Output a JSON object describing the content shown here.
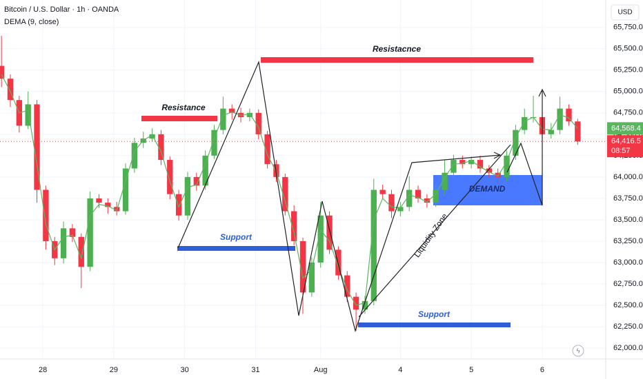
{
  "chart_data": {
    "type": "candlestick",
    "title": "Bitcoin / U.S. Dollar · 1h · OANDA",
    "currency": "USD",
    "up_color": "#4caf50",
    "down_color": "#f23645",
    "x": [
      -14,
      -11,
      -8,
      -5,
      -2,
      1,
      4,
      7,
      10,
      13,
      16,
      19,
      22,
      25,
      28,
      31,
      34,
      37,
      40,
      43,
      46,
      49,
      52,
      55,
      58,
      61,
      64,
      67,
      70,
      73,
      76,
      79,
      82,
      85,
      88,
      91,
      94,
      97,
      100,
      103,
      106,
      109,
      112,
      115,
      118,
      121,
      124,
      127,
      130,
      133,
      136,
      139,
      142,
      145,
      148,
      151,
      154,
      157,
      160,
      163,
      166,
      169,
      172,
      175,
      178,
      181
    ],
    "open": [
      65300,
      65150,
      64900,
      64600,
      64850,
      63850,
      63250,
      63050,
      63400,
      63300,
      62950,
      63750,
      63700,
      63650,
      63600,
      64100,
      64400,
      64450,
      64500,
      64200,
      63800,
      63550,
      64000,
      63900,
      64250,
      64550,
      64800,
      64750,
      64700,
      64750,
      64500,
      64150,
      64000,
      63600,
      63250,
      62650,
      63000,
      63550,
      63150,
      62850,
      62600,
      62450,
      62550,
      63850,
      63800,
      63600,
      63650,
      63850,
      63750,
      63700,
      63850,
      64050,
      64200,
      64150,
      64200,
      64100,
      64050,
      64000,
      64250,
      64550,
      64700,
      64700,
      64500,
      64550,
      64800,
      64650
    ],
    "high": [
      65650,
      65200,
      64950,
      65000,
      64900,
      63900,
      63300,
      63480,
      63450,
      63340,
      63830,
      63800,
      63750,
      63710,
      64160,
      64460,
      64530,
      64570,
      64550,
      64240,
      63850,
      64060,
      64050,
      64310,
      64610,
      64940,
      64850,
      64810,
      64800,
      64790,
      64540,
      64200,
      64040,
      63670,
      63290,
      63060,
      63710,
      63600,
      63190,
      62900,
      62650,
      62610,
      63980,
      63910,
      63850,
      63710,
      64010,
      63900,
      63800,
      63900,
      64200,
      64260,
      64250,
      64240,
      64250,
      64140,
      64100,
      64310,
      64610,
      64800,
      64950,
      64750,
      64630,
      64940,
      64850,
      64680
    ],
    "low": [
      65050,
      64820,
      64520,
      64560,
      63700,
      63150,
      62970,
      62990,
      63240,
      62700,
      62900,
      63640,
      63570,
      63550,
      63560,
      64050,
      64340,
      64410,
      64140,
      63740,
      63490,
      63500,
      63840,
      63850,
      64210,
      64500,
      64670,
      64640,
      64650,
      64440,
      64100,
      63940,
      63550,
      63200,
      62400,
      62600,
      62940,
      63100,
      62800,
      62540,
      62200,
      62400,
      62500,
      63740,
      63520,
      63540,
      63600,
      63700,
      63640,
      63650,
      63800,
      63990,
      64100,
      64100,
      64050,
      64000,
      63920,
      63950,
      64200,
      64500,
      64640,
      64450,
      64450,
      64500,
      64600,
      64376.5
    ],
    "close": [
      65150,
      64900,
      64600,
      64850,
      63850,
      63250,
      63050,
      63400,
      63300,
      62950,
      63750,
      63700,
      63650,
      63600,
      64100,
      64400,
      64450,
      64500,
      64200,
      63800,
      63550,
      64000,
      63900,
      64250,
      64550,
      64800,
      64750,
      64700,
      64750,
      64500,
      64150,
      64000,
      63600,
      63250,
      62650,
      63000,
      63550,
      63150,
      62850,
      62600,
      62450,
      62550,
      63850,
      63800,
      63600,
      63650,
      63850,
      63750,
      63700,
      63850,
      64050,
      64200,
      64150,
      64200,
      64100,
      64050,
      64000,
      64250,
      64550,
      64700,
      64700,
      64500,
      64550,
      64800,
      64650,
      64416.5
    ],
    "last_price_label": "64,416.5",
    "countdown": "08:57",
    "dema": {
      "name": "DEMA (9, close)",
      "color": "#5bb55f",
      "last_label": "64,568.4",
      "values": [
        65200,
        65000,
        64750,
        64780,
        64150,
        63450,
        63150,
        63300,
        63320,
        63050,
        63550,
        63680,
        63660,
        63610,
        63950,
        64300,
        64430,
        64490,
        64300,
        63950,
        63650,
        63880,
        63910,
        64150,
        64450,
        64720,
        64760,
        64720,
        64740,
        64580,
        64260,
        64060,
        63720,
        63350,
        62820,
        62920,
        63380,
        63250,
        62950,
        62680,
        62500,
        62530,
        63500,
        63750,
        63650,
        63640,
        63790,
        63760,
        63710,
        63800,
        63990,
        64150,
        64160,
        64190,
        64120,
        64060,
        64010,
        64180,
        64460,
        64650,
        64700,
        64560,
        64550,
        64730,
        64690,
        64568.4
      ]
    },
    "xlim": [
      -14.5,
      190.5
    ],
    "xticks": [
      {
        "value": 0,
        "label": "28"
      },
      {
        "value": 24,
        "label": "29"
      },
      {
        "value": 48,
        "label": "30"
      },
      {
        "value": 72,
        "label": "31"
      },
      {
        "value": 94,
        "label": "Aug"
      },
      {
        "value": 121,
        "label": "4"
      },
      {
        "value": 145,
        "label": "5"
      },
      {
        "value": 169,
        "label": "6"
      }
    ],
    "ylim": [
      61880,
      66070
    ],
    "yticks": [
      {
        "value": 62000,
        "label": "62,000.0"
      },
      {
        "value": 62250,
        "label": "62,250.0"
      },
      {
        "value": 62500,
        "label": "62,500.0"
      },
      {
        "value": 62750,
        "label": "62,750.0"
      },
      {
        "value": 63000,
        "label": "63,000.0"
      },
      {
        "value": 63250,
        "label": "63,250.0"
      },
      {
        "value": 63500,
        "label": "63,500.0"
      },
      {
        "value": 63750,
        "label": "63,750.0"
      },
      {
        "value": 64000,
        "label": "64,000.0"
      },
      {
        "value": 64250,
        "label": "64,250.0"
      },
      {
        "value": 64500,
        "label": "64,500.0"
      },
      {
        "value": 64750,
        "label": "64,750.0"
      },
      {
        "value": 65000,
        "label": "65,000.0"
      },
      {
        "value": 65250,
        "label": "65,250.0"
      },
      {
        "value": 65500,
        "label": "65,500.0"
      },
      {
        "value": 65750,
        "label": "65,750.0"
      }
    ],
    "grid": true,
    "annotations": [
      "Resistance",
      "Resistacnce",
      "Support",
      "Support",
      "DEMAND",
      "Liquidity Zone"
    ]
  }
}
